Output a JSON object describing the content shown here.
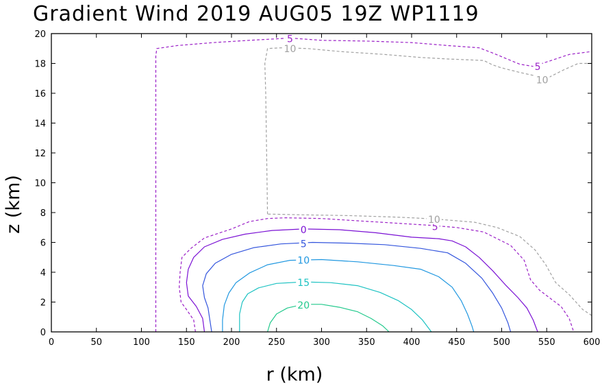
{
  "chart_data": {
    "type": "contour",
    "title": "Gradient Wind 2019 AUG05 19Z  WP1119",
    "xlabel": "r (km)",
    "ylabel": "z (km)",
    "xlim": [
      0,
      600
    ],
    "ylim": [
      0,
      20
    ],
    "xticks": [
      0,
      50,
      100,
      150,
      200,
      250,
      300,
      350,
      400,
      450,
      500,
      550,
      600
    ],
    "yticks": [
      0,
      2,
      4,
      6,
      8,
      10,
      12,
      14,
      16,
      18,
      20
    ],
    "grid": false,
    "contours": [
      {
        "level": "20",
        "color": "#22c98c",
        "style": "solid",
        "label": {
          "text": "20",
          "x": 280,
          "y": 1.8
        },
        "points": [
          [
            240,
            0
          ],
          [
            243,
            0.6
          ],
          [
            250,
            1.2
          ],
          [
            262,
            1.6
          ],
          [
            280,
            1.85
          ],
          [
            300,
            1.85
          ],
          [
            320,
            1.65
          ],
          [
            340,
            1.35
          ],
          [
            355,
            0.9
          ],
          [
            368,
            0.4
          ],
          [
            375,
            0
          ]
        ]
      },
      {
        "level": "15",
        "color": "#1cc2c2",
        "style": "solid",
        "label": {
          "text": "15",
          "x": 280,
          "y": 3.3
        },
        "points": [
          [
            209,
            0
          ],
          [
            209,
            1.2
          ],
          [
            212,
            2.0
          ],
          [
            218,
            2.55
          ],
          [
            230,
            2.95
          ],
          [
            250,
            3.25
          ],
          [
            280,
            3.35
          ],
          [
            310,
            3.3
          ],
          [
            340,
            3.1
          ],
          [
            365,
            2.65
          ],
          [
            385,
            2.1
          ],
          [
            400,
            1.5
          ],
          [
            412,
            0.8
          ],
          [
            422,
            0
          ]
        ]
      },
      {
        "level": "10",
        "color": "#1f97e0",
        "style": "solid",
        "label": {
          "text": "10",
          "x": 280,
          "y": 4.8
        },
        "points": [
          [
            190,
            0
          ],
          [
            190,
            0.8
          ],
          [
            192,
            1.8
          ],
          [
            197,
            2.6
          ],
          [
            205,
            3.3
          ],
          [
            220,
            3.95
          ],
          [
            240,
            4.5
          ],
          [
            265,
            4.8
          ],
          [
            300,
            4.85
          ],
          [
            340,
            4.7
          ],
          [
            380,
            4.45
          ],
          [
            410,
            4.2
          ],
          [
            430,
            3.7
          ],
          [
            445,
            3.0
          ],
          [
            455,
            2.1
          ],
          [
            462,
            1.2
          ],
          [
            467,
            0.4
          ],
          [
            469,
            0
          ]
        ]
      },
      {
        "level": "5",
        "color": "#3355dd",
        "style": "solid",
        "label": {
          "text": "5",
          "x": 280,
          "y": 5.9
        },
        "points": [
          [
            178,
            0
          ],
          [
            176,
            0.8
          ],
          [
            174,
            1.6
          ],
          [
            170,
            2.3
          ],
          [
            168,
            3.1
          ],
          [
            172,
            3.9
          ],
          [
            182,
            4.6
          ],
          [
            200,
            5.2
          ],
          [
            225,
            5.65
          ],
          [
            255,
            5.9
          ],
          [
            290,
            6.0
          ],
          [
            330,
            5.95
          ],
          [
            370,
            5.85
          ],
          [
            410,
            5.6
          ],
          [
            440,
            5.3
          ],
          [
            460,
            4.6
          ],
          [
            478,
            3.6
          ],
          [
            490,
            2.6
          ],
          [
            500,
            1.6
          ],
          [
            507,
            0.6
          ],
          [
            510,
            0
          ]
        ]
      },
      {
        "level": "0",
        "color": "#7a10d4",
        "style": "solid",
        "label": {
          "text": "0",
          "x": 280,
          "y": 6.85
        },
        "points": [
          [
            170,
            0
          ],
          [
            168,
            0.9
          ],
          [
            161,
            1.7
          ],
          [
            152,
            2.4
          ],
          [
            150,
            3.3
          ],
          [
            152,
            4.2
          ],
          [
            158,
            5.0
          ],
          [
            170,
            5.7
          ],
          [
            190,
            6.2
          ],
          [
            215,
            6.55
          ],
          [
            245,
            6.8
          ],
          [
            280,
            6.9
          ],
          [
            320,
            6.85
          ],
          [
            360,
            6.65
          ],
          [
            400,
            6.35
          ],
          [
            430,
            6.25
          ],
          [
            445,
            6.1
          ],
          [
            460,
            5.7
          ],
          [
            475,
            5.0
          ],
          [
            490,
            4.1
          ],
          [
            505,
            3.1
          ],
          [
            518,
            2.3
          ],
          [
            528,
            1.6
          ],
          [
            535,
            0.8
          ],
          [
            540,
            0
          ]
        ]
      },
      {
        "level": "-5",
        "color": "#9a1fc7",
        "style": "dashed",
        "label": {
          "text": "5",
          "x": 426,
          "y": 7.05
        },
        "points": [
          [
            160,
            0
          ],
          [
            158,
            0.8
          ],
          [
            150,
            1.5
          ],
          [
            144,
            2.0
          ],
          [
            142,
            3.0
          ],
          [
            143,
            4.0
          ],
          [
            145,
            5.0
          ],
          [
            155,
            5.6
          ],
          [
            170,
            6.3
          ],
          [
            200,
            6.9
          ],
          [
            220,
            7.4
          ],
          [
            240,
            7.6
          ],
          [
            260,
            7.65
          ],
          [
            300,
            7.6
          ],
          [
            340,
            7.45
          ],
          [
            380,
            7.3
          ],
          [
            420,
            7.15
          ],
          [
            450,
            7.0
          ],
          [
            480,
            6.7
          ],
          [
            510,
            5.8
          ],
          [
            525,
            4.8
          ],
          [
            532,
            3.5
          ],
          [
            542,
            2.8
          ],
          [
            555,
            2.2
          ],
          [
            566,
            1.7
          ],
          [
            575,
            0.9
          ],
          [
            580,
            0
          ]
        ]
      },
      {
        "level": "-10",
        "color": "#a0a0a0",
        "style": "dashed",
        "label": {
          "text": "10",
          "x": 425,
          "y": 7.55
        },
        "points": [
          [
            600,
            1.1
          ],
          [
            590,
            1.5
          ],
          [
            575,
            2.5
          ],
          [
            560,
            3.3
          ],
          [
            549,
            4.5
          ],
          [
            537,
            5.5
          ],
          [
            520,
            6.4
          ],
          [
            495,
            7.0
          ],
          [
            470,
            7.35
          ],
          [
            430,
            7.55
          ],
          [
            400,
            7.65
          ],
          [
            380,
            7.7
          ],
          [
            330,
            7.8
          ],
          [
            280,
            7.85
          ],
          [
            240,
            7.9
          ]
        ]
      },
      {
        "level": "-10",
        "color": "#a0a0a0",
        "style": "dashed",
        "label": {
          "text": "10",
          "x": 265,
          "y": 19.0
        },
        "points": [
          [
            240,
            7.9
          ],
          [
            239,
            12.0
          ],
          [
            238,
            16.0
          ],
          [
            237,
            18.0
          ],
          [
            240,
            19.0
          ],
          [
            255,
            19.05
          ],
          [
            285,
            19.0
          ],
          [
            320,
            18.8
          ],
          [
            370,
            18.6
          ],
          [
            410,
            18.4
          ],
          [
            440,
            18.3
          ],
          [
            480,
            18.2
          ],
          [
            490,
            17.9
          ],
          [
            500,
            17.7
          ],
          [
            520,
            17.4
          ],
          [
            550,
            17.0
          ],
          [
            570,
            17.6
          ],
          [
            585,
            18.0
          ],
          [
            600,
            18.0
          ]
        ]
      },
      {
        "level": "-10",
        "color": "#a0a0a0",
        "style": "dashed",
        "label": {
          "text": "10",
          "x": 545,
          "y": 16.9
        },
        "points": []
      },
      {
        "level": "-5",
        "color": "#9a1fc7",
        "style": "dashed",
        "label": {
          "text": "5",
          "x": 265,
          "y": 19.65
        },
        "points": [
          [
            116,
            0
          ],
          [
            116,
            8.0
          ],
          [
            116,
            16.0
          ],
          [
            116,
            18.5
          ],
          [
            117,
            19.0
          ],
          [
            140,
            19.2
          ],
          [
            180,
            19.4
          ],
          [
            220,
            19.55
          ],
          [
            265,
            19.7
          ],
          [
            300,
            19.55
          ],
          [
            350,
            19.5
          ],
          [
            400,
            19.4
          ],
          [
            440,
            19.2
          ],
          [
            475,
            19.05
          ],
          [
            490,
            18.7
          ],
          [
            500,
            18.45
          ],
          [
            520,
            17.95
          ],
          [
            535,
            17.8
          ],
          [
            555,
            18.2
          ],
          [
            575,
            18.6
          ],
          [
            600,
            18.8
          ]
        ]
      },
      {
        "level": "-5",
        "color": "#9a1fc7",
        "style": "dashed",
        "label": {
          "text": "5",
          "x": 540,
          "y": 17.8
        },
        "points": []
      }
    ]
  }
}
